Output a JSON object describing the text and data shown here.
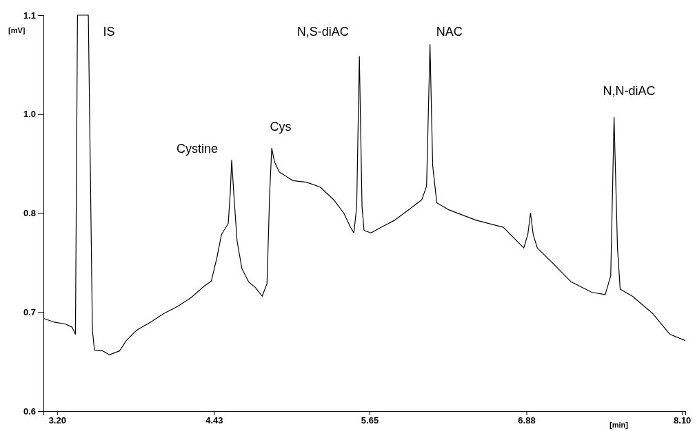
{
  "chart_data": {
    "type": "line",
    "xlabel": "[min]",
    "ylabel": "[mV]",
    "xlim": [
      3.093,
      8.126
    ],
    "xticks": [
      {
        "value": 3.2,
        "label": "3.20"
      },
      4.43,
      5.65,
      6.88,
      {
        "value": 8.1,
        "label": "8.10"
      }
    ],
    "ylim": [
      0.6,
      1.1
    ],
    "yticks": [
      0.6,
      {
        "value": 0.725,
        "label": "0.7"
      },
      {
        "value": 0.85,
        "label": "0.8"
      },
      {
        "value": 0.975,
        "label": "1.0"
      },
      1.1
    ],
    "grid": false,
    "marker": "none",
    "line_style": "solid",
    "series": [
      {
        "color": "#000000",
        "x": [
          3.093,
          3.184,
          3.264,
          3.317,
          3.344,
          3.36,
          3.445,
          3.477,
          3.493,
          3.557,
          3.61,
          3.69,
          3.743,
          3.823,
          3.93,
          4.036,
          4.143,
          4.249,
          4.356,
          4.409,
          4.452,
          4.489,
          4.542,
          4.558,
          4.569,
          4.585,
          4.611,
          4.649,
          4.702,
          4.755,
          4.808,
          4.846,
          4.867,
          4.883,
          4.904,
          4.942,
          5.048,
          5.155,
          5.261,
          5.368,
          5.448,
          5.501,
          5.527,
          5.549,
          5.57,
          5.591,
          5.607,
          5.661,
          5.74,
          5.847,
          5.954,
          6.06,
          6.097,
          6.124,
          6.145,
          6.177,
          6.273,
          6.486,
          6.699,
          6.859,
          6.891,
          6.912,
          6.933,
          6.965,
          7.072,
          7.232,
          7.392,
          7.498,
          7.541,
          7.567,
          7.594,
          7.615,
          7.711,
          7.871,
          8.004,
          8.126
        ],
        "values": [
          0.717,
          0.712,
          0.71,
          0.706,
          0.697,
          1.1,
          1.1,
          0.702,
          0.677,
          0.676,
          0.671,
          0.676,
          0.689,
          0.702,
          0.712,
          0.723,
          0.732,
          0.743,
          0.758,
          0.764,
          0.793,
          0.823,
          0.837,
          0.876,
          0.917,
          0.876,
          0.815,
          0.78,
          0.763,
          0.756,
          0.745,
          0.761,
          0.876,
          0.932,
          0.915,
          0.902,
          0.891,
          0.889,
          0.883,
          0.867,
          0.85,
          0.832,
          0.825,
          0.858,
          1.048,
          0.858,
          0.828,
          0.825,
          0.832,
          0.841,
          0.854,
          0.867,
          0.884,
          1.063,
          0.91,
          0.863,
          0.854,
          0.841,
          0.832,
          0.806,
          0.823,
          0.85,
          0.823,
          0.806,
          0.789,
          0.763,
          0.75,
          0.747,
          0.771,
          0.971,
          0.806,
          0.754,
          0.745,
          0.723,
          0.697,
          0.689
        ]
      }
    ],
    "annotations": [
      {
        "text": "IS",
        "x": 3.445,
        "y": 1.1
      },
      {
        "text": "Cystine",
        "x": 4.569,
        "y": 0.917
      },
      {
        "text": "Cys",
        "x": 4.883,
        "y": 0.932
      },
      {
        "text": "N,S-diAC",
        "x": 5.57,
        "y": 1.048
      },
      {
        "text": "NAC",
        "x": 6.124,
        "y": 1.063
      },
      {
        "text": "N,N-diAC",
        "x": 7.567,
        "y": 0.971
      }
    ]
  }
}
